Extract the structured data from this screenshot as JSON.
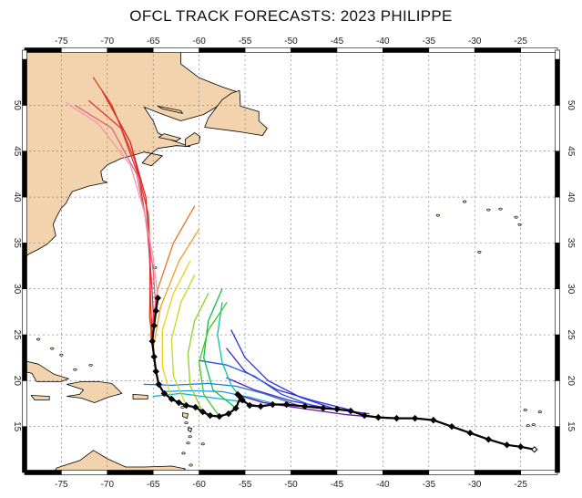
{
  "title": "OFCL TRACK FORECASTS: 2023 PHILIPPE",
  "map": {
    "lon_range": [
      -79,
      -21
    ],
    "lat_range": [
      10,
      56
    ],
    "lon_ticks": [
      -75,
      -70,
      -65,
      -60,
      -55,
      -50,
      -45,
      -40,
      -35,
      -30,
      -25
    ],
    "lat_ticks": [
      15,
      20,
      25,
      30,
      35,
      40,
      45,
      50
    ],
    "grid": true,
    "land_color": "#f3d3ad",
    "ocean_color": "#ffffff"
  },
  "best_track": {
    "color": "#000000",
    "points": [
      [
        -23.5,
        12.5
      ],
      [
        -25.0,
        12.8
      ],
      [
        -26.5,
        13.0
      ],
      [
        -28.5,
        13.6
      ],
      [
        -30.5,
        14.3
      ],
      [
        -32.5,
        15.0
      ],
      [
        -34.5,
        15.7
      ],
      [
        -36.5,
        15.9
      ],
      [
        -38.5,
        15.9
      ],
      [
        -40.5,
        16.0
      ],
      [
        -42.0,
        16.2
      ],
      [
        -43.5,
        16.7
      ],
      [
        -45.0,
        16.9
      ],
      [
        -46.5,
        17.0
      ],
      [
        -48.5,
        17.2
      ],
      [
        -50.5,
        17.4
      ],
      [
        -52.0,
        17.4
      ],
      [
        -53.3,
        17.2
      ],
      [
        -54.5,
        17.3
      ],
      [
        -55.3,
        17.9
      ],
      [
        -55.8,
        18.5
      ],
      [
        -55.5,
        18.2
      ],
      [
        -56.0,
        17.0
      ],
      [
        -56.8,
        16.4
      ],
      [
        -57.8,
        16.1
      ],
      [
        -58.8,
        16.2
      ],
      [
        -59.6,
        16.6
      ],
      [
        -60.4,
        17.1
      ],
      [
        -61.4,
        17.3
      ],
      [
        -62.2,
        17.6
      ],
      [
        -63.0,
        18.0
      ],
      [
        -63.8,
        18.6
      ],
      [
        -64.4,
        19.6
      ],
      [
        -64.7,
        21.0
      ],
      [
        -64.9,
        22.6
      ],
      [
        -65.1,
        24.3
      ],
      [
        -64.9,
        26.0
      ],
      [
        -64.7,
        27.6
      ],
      [
        -64.5,
        29.0
      ]
    ]
  },
  "forecast_tracks": [
    {
      "color": "#6a0dad",
      "points": [
        [
          -39.5,
          15.9
        ],
        [
          -44,
          16.3
        ],
        [
          -49,
          17.0
        ],
        [
          -53,
          17.6
        ],
        [
          -56,
          18.5
        ]
      ]
    },
    {
      "color": "#5a1fc8",
      "points": [
        [
          -41.5,
          16.4
        ],
        [
          -46,
          17.0
        ],
        [
          -50,
          17.8
        ],
        [
          -54,
          19.0
        ],
        [
          -57,
          20.3
        ]
      ]
    },
    {
      "color": "#3a2bd8",
      "points": [
        [
          -43.5,
          16.8
        ],
        [
          -47.5,
          17.8
        ],
        [
          -51.5,
          19.0
        ],
        [
          -55,
          21.0
        ],
        [
          -57,
          23.5
        ]
      ]
    },
    {
      "color": "#2a2ff0",
      "points": [
        [
          -45.5,
          17.0
        ],
        [
          -49,
          18.2
        ],
        [
          -52.5,
          20.0
        ],
        [
          -55,
          22.5
        ],
        [
          -56.5,
          25.5
        ]
      ]
    },
    {
      "color": "#1f5ae0",
      "points": [
        [
          -47.5,
          17.2
        ],
        [
          -51,
          18.5
        ],
        [
          -54,
          20.5
        ],
        [
          -57,
          21.7
        ],
        [
          -60,
          22.2
        ]
      ]
    },
    {
      "color": "#1a7ad8",
      "points": [
        [
          -49.5,
          17.4
        ],
        [
          -53,
          18.6
        ],
        [
          -56,
          19.4
        ],
        [
          -59,
          19.7
        ],
        [
          -63,
          19.5
        ],
        [
          -66,
          19.6
        ]
      ]
    },
    {
      "color": "#1a9ae0",
      "points": [
        [
          -51.5,
          17.4
        ],
        [
          -54.5,
          18.2
        ],
        [
          -57.5,
          18.8
        ],
        [
          -61,
          18.9
        ],
        [
          -64,
          18.8
        ]
      ]
    },
    {
      "color": "#00b4d8",
      "points": [
        [
          -53.3,
          17.2
        ],
        [
          -56,
          17.8
        ],
        [
          -59,
          18.2
        ],
        [
          -62,
          18.6
        ],
        [
          -65,
          18.3
        ]
      ]
    },
    {
      "color": "#00c8a0",
      "points": [
        [
          -55.3,
          17.9
        ],
        [
          -56.5,
          19.5
        ],
        [
          -57.5,
          22
        ],
        [
          -58,
          25
        ],
        [
          -57.5,
          28.5
        ]
      ]
    },
    {
      "color": "#10c040",
      "points": [
        [
          -56,
          17.0
        ],
        [
          -58.5,
          19.0
        ],
        [
          -59.5,
          22.5
        ],
        [
          -59,
          26.5
        ],
        [
          -57.5,
          30
        ]
      ]
    },
    {
      "color": "#40c820",
      "points": [
        [
          -57.8,
          16.1
        ],
        [
          -59.5,
          18.5
        ],
        [
          -60,
          22
        ],
        [
          -59,
          25.5
        ],
        [
          -57,
          28.5
        ]
      ]
    },
    {
      "color": "#90d020",
      "points": [
        [
          -59.6,
          16.6
        ],
        [
          -61,
          19.5
        ],
        [
          -61.2,
          23
        ],
        [
          -60.5,
          26.5
        ],
        [
          -59,
          29.5
        ]
      ]
    },
    {
      "color": "#c8d818",
      "points": [
        [
          -61.4,
          17.3
        ],
        [
          -62.8,
          20.5
        ],
        [
          -63,
          24.5
        ],
        [
          -62,
          28.5
        ],
        [
          -60.5,
          31.5
        ]
      ]
    },
    {
      "color": "#f0d010",
      "points": [
        [
          -63.0,
          18.0
        ],
        [
          -64,
          21.5
        ],
        [
          -64,
          25.5
        ],
        [
          -62.8,
          29.5
        ],
        [
          -61,
          33
        ]
      ]
    },
    {
      "color": "#f0a020",
      "points": [
        [
          -64.4,
          19.6
        ],
        [
          -65,
          23.5
        ],
        [
          -64.2,
          28
        ],
        [
          -62.2,
          33
        ],
        [
          -60,
          36.5
        ]
      ]
    },
    {
      "color": "#f07020",
      "points": [
        [
          -64.7,
          21.0
        ],
        [
          -65.3,
          25
        ],
        [
          -64.5,
          30
        ],
        [
          -62.8,
          35
        ],
        [
          -60.5,
          39
        ]
      ]
    },
    {
      "color": "#e04010",
      "points": [
        [
          -64.9,
          22.6
        ],
        [
          -65.4,
          27
        ],
        [
          -65.3,
          32
        ],
        [
          -65.5,
          38
        ],
        [
          -67,
          44
        ],
        [
          -69.5,
          50
        ],
        [
          -71.5,
          53
        ]
      ]
    },
    {
      "color": "#d82020",
      "points": [
        [
          -65.1,
          24.3
        ],
        [
          -65.3,
          29
        ],
        [
          -65.4,
          34
        ],
        [
          -65.8,
          40
        ],
        [
          -67.5,
          46
        ],
        [
          -70.5,
          51.5
        ]
      ]
    },
    {
      "color": "#e03050",
      "points": [
        [
          -64.9,
          26.0
        ],
        [
          -65.2,
          31
        ],
        [
          -65.6,
          36
        ],
        [
          -66.5,
          42
        ],
        [
          -68.5,
          47.5
        ],
        [
          -72,
          50.5
        ]
      ]
    },
    {
      "color": "#e06080",
      "points": [
        [
          -64.7,
          27.6
        ],
        [
          -65.0,
          32
        ],
        [
          -65.7,
          37
        ],
        [
          -66.8,
          42.5
        ],
        [
          -69.5,
          47.5
        ],
        [
          -73.5,
          50
        ]
      ]
    },
    {
      "color": "#f098a8",
      "points": [
        [
          -64.5,
          29.0
        ],
        [
          -65.0,
          33.5
        ],
        [
          -66.0,
          38.5
        ],
        [
          -67.5,
          43.5
        ],
        [
          -71,
          48
        ],
        [
          -74.5,
          50.3
        ]
      ]
    }
  ]
}
